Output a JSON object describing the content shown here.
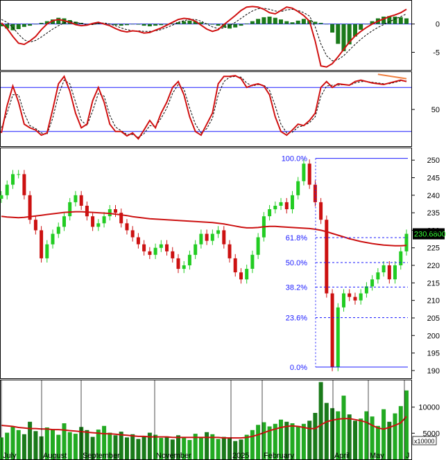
{
  "chart_data": [
    {
      "type": "bar",
      "name": "macd",
      "ylim": [
        -8,
        4
      ],
      "y_ticks": [
        0,
        -5
      ],
      "histogram": [
        -0.4,
        -0.8,
        -1.1,
        -0.9,
        -0.5,
        -0.3,
        0.0,
        0.2,
        0.5,
        0.8,
        1.1,
        1.0,
        0.7,
        0.4,
        0.2,
        0.0,
        -0.1,
        0.2,
        0.1,
        0.0,
        -0.2,
        -0.3,
        -0.2,
        0.0,
        -0.1,
        -0.3,
        -0.4,
        -0.3,
        -0.2,
        -0.1,
        0.1,
        0.3,
        0.5,
        0.6,
        0.5,
        0.3,
        0.1,
        -0.1,
        -0.3,
        -0.6,
        -0.8,
        -0.6,
        -0.3,
        0.1,
        0.5,
        0.9,
        1.2,
        1.3,
        1.1,
        0.8,
        0.5,
        0.3,
        0.6,
        0.9,
        0.7,
        0.4,
        0.2,
        0.0,
        -1.5,
        -3.5,
        -4.8,
        -3.6,
        -2.2,
        -1.0,
        0.0,
        0.5,
        1.0,
        1.3,
        1.4,
        1.3,
        1.2,
        1.0
      ],
      "macd": [
        0.2,
        -0.8,
        -2.2,
        -3.4,
        -3.6,
        -3.0,
        -2.2,
        -1.0,
        0.0,
        0.6,
        0.8,
        0.6,
        0.3,
        -0.1,
        -0.3,
        -0.2,
        0.1,
        0.3,
        0.0,
        -0.3,
        -0.8,
        -1.2,
        -1.4,
        -1.2,
        -1.3,
        -1.6,
        -1.5,
        -1.1,
        -0.7,
        -0.2,
        0.3,
        0.8,
        1.0,
        0.9,
        0.5,
        -0.2,
        -0.9,
        -1.3,
        -1.0,
        -0.1,
        0.7,
        1.5,
        2.4,
        3.0,
        3.1,
        3.0,
        2.6,
        2.0,
        1.8,
        2.4,
        3.0,
        2.8,
        2.2,
        1.5,
        0.5,
        -3.0,
        -7.4,
        -7.6,
        -7.0,
        -5.8,
        -4.5,
        -3.2,
        -2.1,
        -1.3,
        -0.6,
        0.0,
        0.5,
        0.9,
        1.3,
        1.6,
        2.0,
        2.6
      ],
      "signal": [
        0.8,
        0.3,
        -0.6,
        -1.8,
        -2.8,
        -3.2,
        -2.9,
        -2.3,
        -1.6,
        -0.9,
        -0.3,
        0.2,
        0.4,
        0.3,
        0.1,
        -0.1,
        -0.1,
        0.1,
        0.2,
        0.0,
        -0.3,
        -0.7,
        -1.0,
        -1.2,
        -1.2,
        -1.3,
        -1.3,
        -1.2,
        -1.0,
        -0.6,
        -0.2,
        0.3,
        0.6,
        0.8,
        0.8,
        0.5,
        0.0,
        -0.5,
        -0.8,
        -0.7,
        -0.3,
        0.3,
        1.0,
        1.7,
        2.3,
        2.7,
        2.8,
        2.6,
        2.3,
        2.2,
        2.5,
        2.6,
        2.4,
        2.0,
        1.4,
        -0.5,
        -3.5,
        -5.6,
        -6.5,
        -6.3,
        -5.6,
        -4.6,
        -3.6,
        -2.7,
        -1.9,
        -1.2,
        -0.6,
        -0.1,
        0.4,
        0.9,
        1.3,
        1.8
      ]
    },
    {
      "type": "line",
      "name": "stochastic",
      "ylim": [
        0,
        100
      ],
      "y_ticks": [
        50
      ],
      "levels": [
        80,
        20
      ],
      "k": [
        18,
        55,
        82,
        60,
        30,
        25,
        22,
        15,
        18,
        50,
        85,
        95,
        75,
        45,
        25,
        30,
        62,
        80,
        60,
        30,
        20,
        20,
        14,
        18,
        10,
        22,
        35,
        25,
        45,
        60,
        80,
        88,
        70,
        40,
        20,
        15,
        30,
        45,
        85,
        95,
        95,
        96,
        92,
        80,
        83,
        85,
        82,
        70,
        40,
        20,
        15,
        22,
        30,
        28,
        35,
        45,
        80,
        88,
        80,
        85,
        84,
        83,
        88,
        90,
        88,
        86,
        85,
        84,
        86,
        88,
        90,
        88
      ],
      "d": [
        25,
        45,
        70,
        70,
        45,
        28,
        24,
        18,
        16,
        38,
        70,
        90,
        85,
        60,
        35,
        28,
        48,
        72,
        68,
        42,
        26,
        21,
        16,
        16,
        12,
        17,
        28,
        27,
        38,
        52,
        72,
        84,
        78,
        52,
        30,
        18,
        24,
        38,
        70,
        88,
        94,
        95,
        94,
        86,
        82,
        84,
        83,
        76,
        55,
        30,
        18,
        19,
        26,
        28,
        32,
        40,
        68,
        82,
        83,
        83,
        84,
        83,
        86,
        88,
        88,
        87,
        86,
        85,
        85,
        87,
        89,
        89
      ]
    },
    {
      "type": "line",
      "name": "price",
      "ylim": [
        188,
        253
      ],
      "y_ticks": [
        250,
        245,
        240,
        235,
        230,
        225,
        220,
        215,
        210,
        205,
        200,
        195,
        190
      ],
      "last_price_label": "230.6800",
      "close": [
        240,
        243,
        246,
        246,
        240,
        233,
        230,
        222,
        226,
        229,
        231,
        234,
        238,
        240,
        237,
        234,
        231,
        232,
        234,
        236,
        235,
        232,
        230,
        228,
        226,
        224,
        223,
        225,
        226,
        224,
        222,
        219,
        220,
        223,
        226,
        229,
        227,
        229,
        230,
        226,
        222,
        218,
        216,
        219,
        223,
        228,
        234,
        236,
        237,
        238,
        236,
        240,
        244,
        249,
        243,
        238,
        233,
        212,
        191,
        208,
        212,
        211,
        210,
        212,
        214,
        216,
        218,
        220,
        216,
        220,
        224,
        229
      ],
      "ma": [
        234,
        233.8,
        233.7,
        233.6,
        233.7,
        233.9,
        234.1,
        234.3,
        234.5,
        234.7,
        234.9,
        235.1,
        235.2,
        235.3,
        235.3,
        235.2,
        235.1,
        235.0,
        234.9,
        234.8,
        234.6,
        234.4,
        234.2,
        233.9,
        233.7,
        233.5,
        233.3,
        233.2,
        233.1,
        233.0,
        232.9,
        232.8,
        232.7,
        232.6,
        232.5,
        232.4,
        232.3,
        232.2,
        232.0,
        231.8,
        231.5,
        231.2,
        230.9,
        230.7,
        230.7,
        230.8,
        231.0,
        231.1,
        231.1,
        231.0,
        230.9,
        230.8,
        230.7,
        230.6,
        230.5,
        230.3,
        230.0,
        229.6,
        229.1,
        228.6,
        228.1,
        227.6,
        227.2,
        226.8,
        226.5,
        226.2,
        226.0,
        225.8,
        225.7,
        225.6,
        225.6,
        225.7
      ],
      "fibonacci": {
        "levels": [
          {
            "label": "100.0%",
            "value": 250.5
          },
          {
            "label": "61.8%",
            "value": 227.9
          },
          {
            "label": "50.0%",
            "value": 220.8
          },
          {
            "label": "38.2%",
            "value": 213.8
          },
          {
            "label": "23.6%",
            "value": 205.1
          },
          {
            "label": "0.0%",
            "value": 191.0
          }
        ]
      },
      "x_labels": [
        "July",
        "August",
        "September",
        "November",
        "2025",
        "February",
        "April",
        "May",
        "J"
      ]
    },
    {
      "type": "bar",
      "name": "volume",
      "ylim": [
        0,
        15000
      ],
      "y_ticks": [
        10000,
        5000
      ],
      "unit_label": "x10000",
      "volume": [
        4200,
        5100,
        6300,
        5600,
        4800,
        7200,
        5400,
        4400,
        6100,
        5800,
        4700,
        6900,
        5200,
        4900,
        6200,
        5600,
        4300,
        5700,
        6400,
        5100,
        4600,
        5300,
        4200,
        4800,
        3900,
        4500,
        5100,
        4700,
        4100,
        4400,
        3800,
        4600,
        4200,
        3700,
        4900,
        4300,
        5200,
        4800,
        3900,
        4300,
        4000,
        3500,
        3800,
        4700,
        5600,
        6600,
        7100,
        6300,
        6800,
        7600,
        7200,
        6900,
        6400,
        6800,
        7400,
        8900,
        14800,
        10800,
        9800,
        9200,
        12200,
        8600,
        7400,
        7800,
        9200,
        8200,
        6400,
        9600,
        7200,
        8800,
        10200,
        13200
      ],
      "ma": [
        6500,
        6400,
        6300,
        6100,
        6000,
        5900,
        5900,
        5800,
        5800,
        5700,
        5700,
        5600,
        5500,
        5400,
        5300,
        5200,
        5100,
        5000,
        4900,
        4900,
        4800,
        4700,
        4600,
        4500,
        4400,
        4400,
        4300,
        4300,
        4300,
        4300,
        4200,
        4200,
        4200,
        4200,
        4200,
        4200,
        4200,
        4200,
        4200,
        4100,
        4100,
        4100,
        4100,
        4200,
        4400,
        4700,
        5100,
        5500,
        5800,
        6100,
        6300,
        6400,
        6300,
        6100,
        5900,
        5900,
        6600,
        7200,
        7500,
        7700,
        7800,
        7800,
        7600,
        7400,
        7100,
        6500,
        6000,
        5800,
        6100,
        6500,
        7000,
        8200
      ]
    }
  ]
}
